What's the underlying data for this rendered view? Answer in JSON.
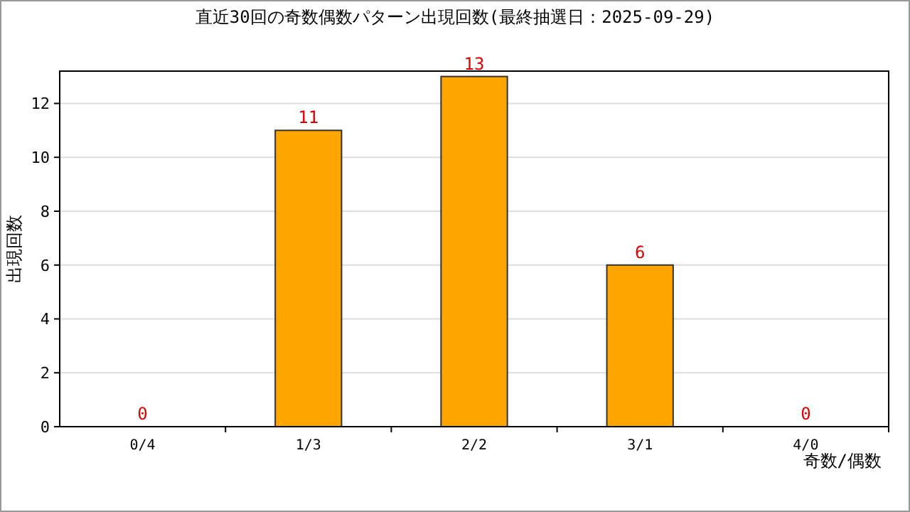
{
  "chart_data": {
    "type": "bar",
    "title": "直近30回の奇数偶数パターン出現回数(最終抽選日：2025-09-29)",
    "xlabel": "奇数/偶数",
    "ylabel": "出現回数",
    "categories": [
      "0/4",
      "1/3",
      "2/2",
      "3/1",
      "4/0"
    ],
    "values": [
      0,
      11,
      13,
      6,
      0
    ],
    "color": "#ffa500",
    "ylim": [
      0,
      13.2
    ],
    "yticks": [
      0,
      2,
      4,
      6,
      8,
      10,
      12
    ],
    "grid": "y",
    "data_labels": true
  }
}
